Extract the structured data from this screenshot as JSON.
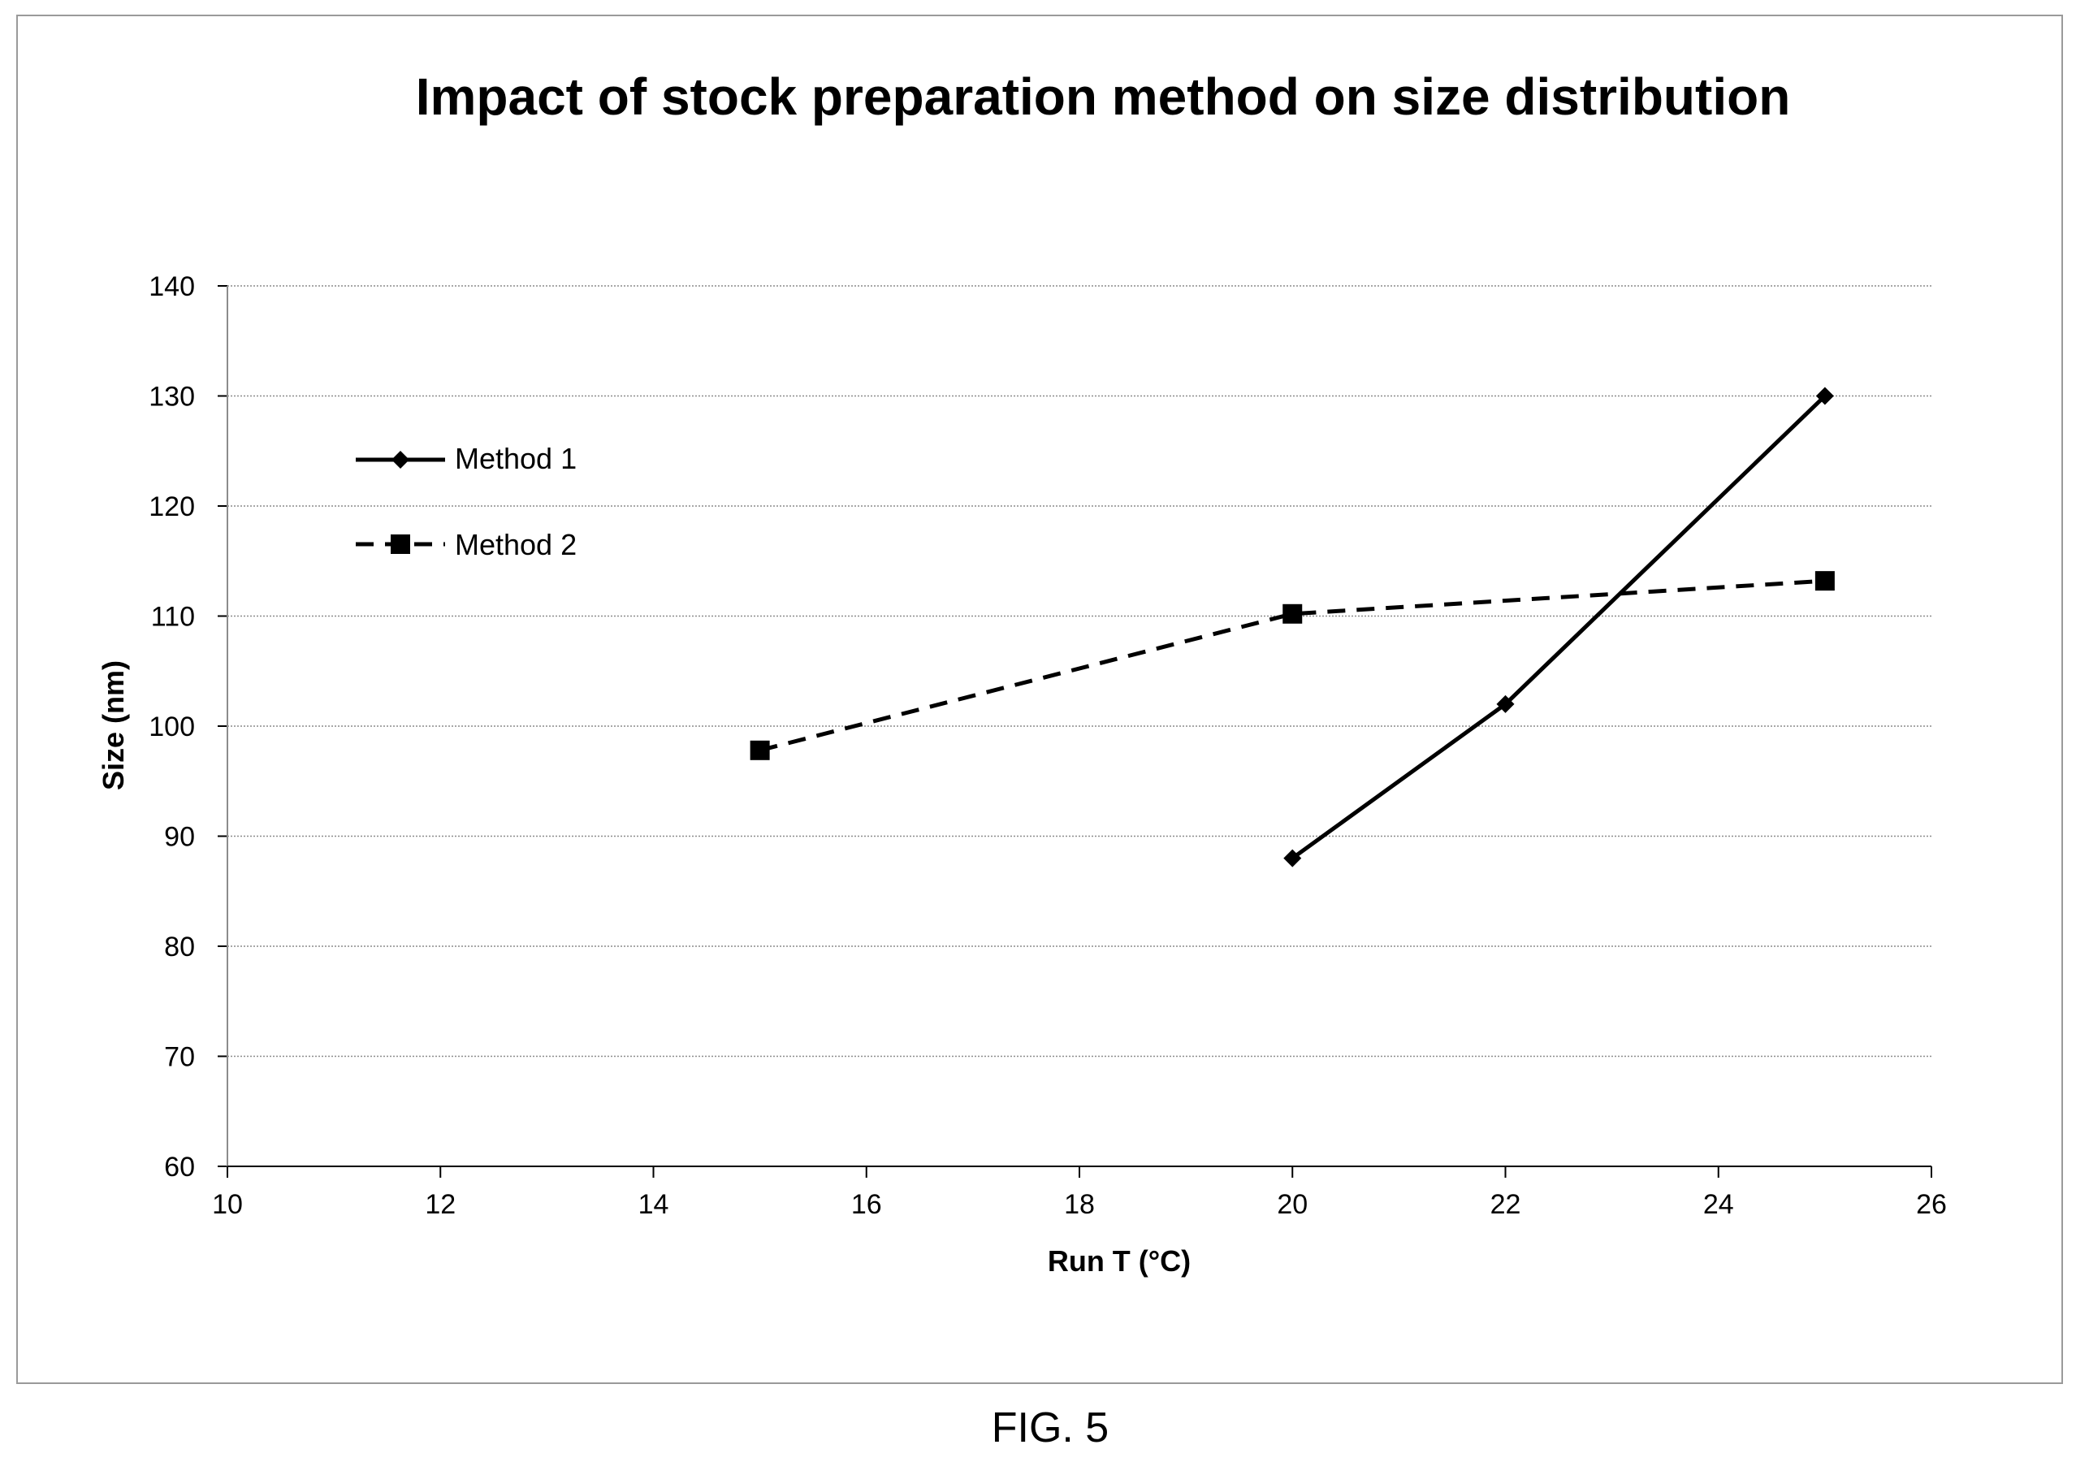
{
  "figure_caption": "FIG. 5",
  "chart_data": {
    "type": "line",
    "title": "Impact of stock preparation method on size distribution",
    "xlabel": "Run T (°C)",
    "ylabel": "Size (nm)",
    "xlim": [
      10,
      26
    ],
    "ylim": [
      60,
      140
    ],
    "x_ticks": [
      "10",
      "12",
      "14",
      "16",
      "18",
      "20",
      "22",
      "24",
      "26"
    ],
    "y_ticks": [
      "60",
      "70",
      "80",
      "90",
      "100",
      "110",
      "120",
      "130",
      "140"
    ],
    "grid": "horizontal",
    "legend_position": "top-left",
    "series": [
      {
        "name": "Method 1",
        "x": [
          20,
          22,
          25
        ],
        "y": [
          88,
          102,
          130
        ],
        "line_style": "solid",
        "marker": "diamond",
        "color": "#000000"
      },
      {
        "name": "Method 2",
        "x": [
          15,
          20,
          25
        ],
        "y": [
          97.8,
          110.2,
          113.2
        ],
        "line_style": "dashed",
        "marker": "square",
        "color": "#000000"
      }
    ]
  }
}
